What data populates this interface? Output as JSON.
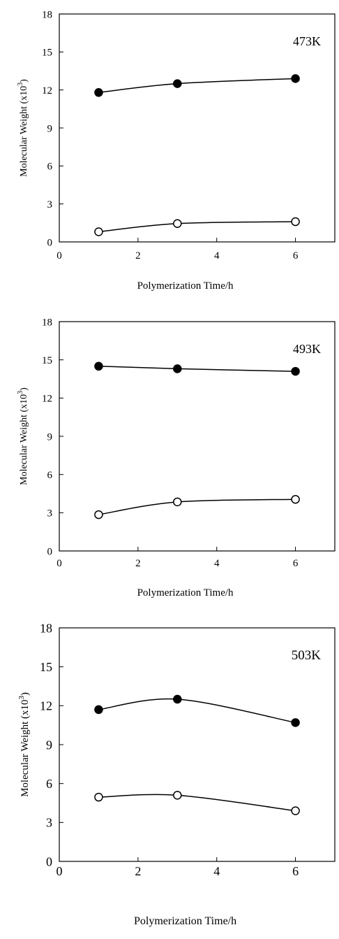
{
  "chart_data": [
    {
      "type": "line",
      "annotation": "473K",
      "xlabel": "Polymerization Time/h",
      "ylabel": "Molecular Weight (x10",
      "ylabel_sup": "3",
      "ylabel_end": ")",
      "xlim": [
        0,
        7
      ],
      "ylim": [
        0,
        18
      ],
      "xticks": [
        "0",
        "2",
        "4",
        "6"
      ],
      "yticks": [
        "0",
        "3",
        "6",
        "9",
        "12",
        "15",
        "18"
      ],
      "grid": false,
      "series": [
        {
          "marker": "filled-circle",
          "color": "#000000",
          "x": [
            1,
            3,
            6
          ],
          "y": [
            11.8,
            12.5,
            12.9
          ]
        },
        {
          "marker": "open-circle",
          "color": "#000000",
          "x": [
            1,
            3,
            6
          ],
          "y": [
            0.8,
            1.45,
            1.6
          ]
        }
      ]
    },
    {
      "type": "line",
      "annotation": "493K",
      "xlabel": "Polymerization Time/h",
      "ylabel": "Molecular Weight (x10",
      "ylabel_sup": "3",
      "ylabel_end": ")",
      "xlim": [
        0,
        7
      ],
      "ylim": [
        0,
        18
      ],
      "xticks": [
        "0",
        "2",
        "4",
        "6"
      ],
      "yticks": [
        "0",
        "3",
        "6",
        "9",
        "12",
        "15",
        "18"
      ],
      "grid": false,
      "series": [
        {
          "marker": "filled-circle",
          "color": "#000000",
          "x": [
            1,
            3,
            6
          ],
          "y": [
            14.5,
            14.3,
            14.1
          ]
        },
        {
          "marker": "open-circle",
          "color": "#000000",
          "x": [
            1,
            3,
            6
          ],
          "y": [
            2.85,
            3.85,
            4.05
          ]
        }
      ]
    },
    {
      "type": "line",
      "annotation": "503K",
      "xlabel": "Polymerization Time/h",
      "ylabel": "Molecular Weight (x10",
      "ylabel_sup": "3",
      "ylabel_end": ")",
      "xlim": [
        0,
        7
      ],
      "ylim": [
        0,
        18
      ],
      "xticks": [
        "0",
        "2",
        "4",
        "6"
      ],
      "yticks": [
        "0",
        "3",
        "6",
        "9",
        "12",
        "15",
        "18"
      ],
      "grid": false,
      "series": [
        {
          "marker": "filled-circle",
          "color": "#000000",
          "x": [
            1,
            3,
            6
          ],
          "y": [
            11.7,
            12.5,
            10.7
          ]
        },
        {
          "marker": "open-circle",
          "color": "#000000",
          "x": [
            1,
            3,
            6
          ],
          "y": [
            4.95,
            5.1,
            3.9
          ]
        }
      ]
    }
  ]
}
